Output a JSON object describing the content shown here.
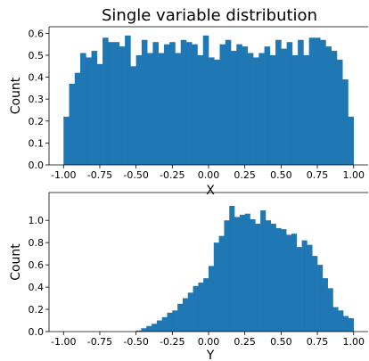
{
  "title": "Single variable distribution",
  "colors": {
    "bar": "#1f77b4"
  },
  "chart_data": [
    {
      "type": "bar",
      "title": "Single variable distribution",
      "xlabel": "X",
      "ylabel": "Count",
      "xlim": [
        -1.1,
        1.1
      ],
      "ylim": [
        0,
        0.63
      ],
      "xticks": [
        "-1.00",
        "-0.75",
        "-0.50",
        "-0.25",
        "0.00",
        "0.25",
        "0.50",
        "0.75",
        "1.00"
      ],
      "yticks": [
        "0.0",
        "0.1",
        "0.2",
        "0.3",
        "0.4",
        "0.5",
        "0.6"
      ],
      "bin_start": -1.0,
      "bin_end": 1.0,
      "values": [
        0.22,
        0.37,
        0.42,
        0.51,
        0.49,
        0.52,
        0.46,
        0.58,
        0.56,
        0.56,
        0.54,
        0.59,
        0.45,
        0.5,
        0.57,
        0.51,
        0.56,
        0.51,
        0.55,
        0.56,
        0.51,
        0.57,
        0.56,
        0.55,
        0.5,
        0.59,
        0.49,
        0.48,
        0.55,
        0.57,
        0.52,
        0.55,
        0.54,
        0.51,
        0.49,
        0.51,
        0.54,
        0.5,
        0.57,
        0.53,
        0.56,
        0.5,
        0.57,
        0.5,
        0.58,
        0.58,
        0.57,
        0.54,
        0.52,
        0.48,
        0.39,
        0.22
      ]
    },
    {
      "type": "bar",
      "title": "",
      "xlabel": "Y",
      "ylabel": "Count",
      "xlim": [
        -1.1,
        1.1
      ],
      "ylim": [
        0,
        1.25
      ],
      "xticks": [
        "-1.00",
        "-0.75",
        "-0.50",
        "-0.25",
        "0.00",
        "0.25",
        "0.50",
        "0.75",
        "1.00"
      ],
      "yticks": [
        "0.0",
        "0.2",
        "0.4",
        "0.6",
        "0.8",
        "1.0"
      ],
      "bin_start": -1.0,
      "bin_end": 1.0,
      "values": [
        0,
        0,
        0,
        0,
        0,
        0,
        0,
        0,
        0,
        0,
        0,
        0,
        0,
        0,
        0.01,
        0.03,
        0.05,
        0.07,
        0.1,
        0.13,
        0.17,
        0.19,
        0.25,
        0.3,
        0.35,
        0.41,
        0.44,
        0.48,
        0.59,
        0.8,
        0.86,
        1.0,
        1.13,
        1.03,
        1.05,
        1.06,
        1.01,
        0.97,
        1.09,
        1.0,
        0.97,
        0.93,
        0.92,
        0.87,
        0.88,
        0.76,
        0.82,
        0.78,
        0.68,
        0.6,
        0.48,
        0.39,
        0.22,
        0.19,
        0.14,
        0.12
      ]
    }
  ]
}
